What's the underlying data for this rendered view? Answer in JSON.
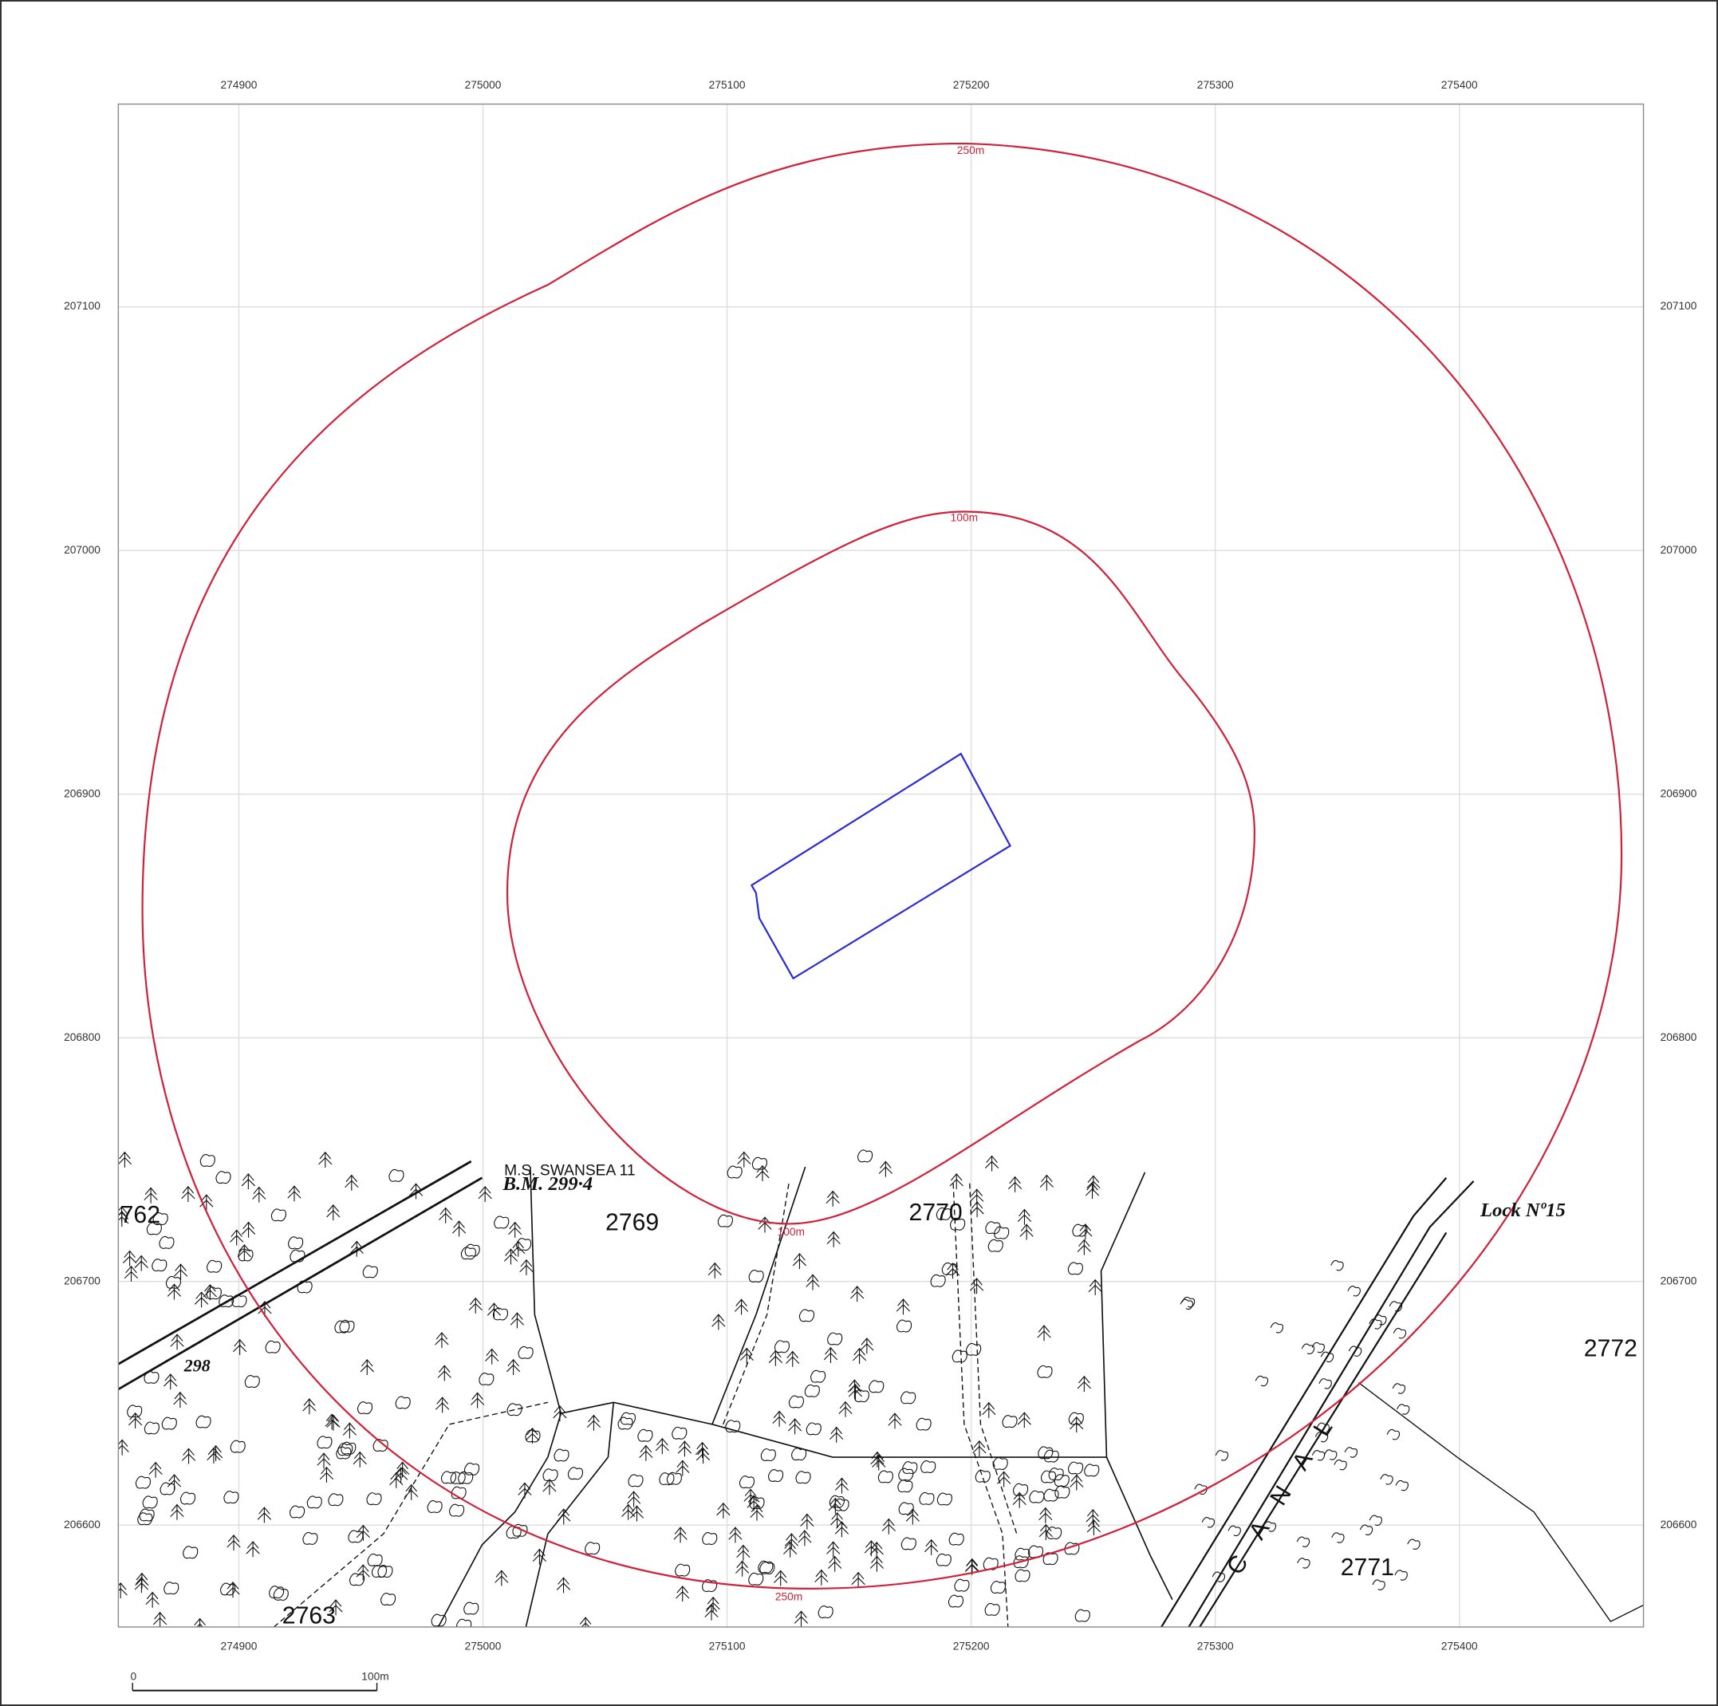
{
  "map": {
    "x_ticks": [
      274900,
      275000,
      275100,
      275200,
      275300,
      275400
    ],
    "y_ticks": [
      207100,
      207000,
      206900,
      206800,
      206700,
      206600
    ],
    "buffers": [
      {
        "label": "250m"
      },
      {
        "label": "100m"
      }
    ],
    "labels": [
      "762",
      "2769",
      "2770",
      "2772",
      "2771",
      "2763",
      "298",
      "Lock Nº15",
      "B.M. 299·4",
      "M.S. SWANSEA 11",
      "CANAL"
    ],
    "scale_bar": [
      "0",
      "100m"
    ]
  }
}
